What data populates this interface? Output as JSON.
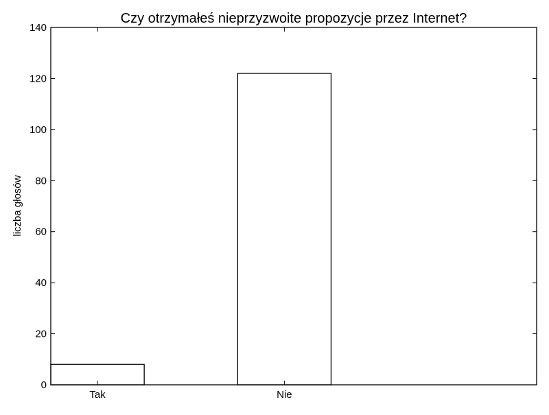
{
  "chart_data": {
    "type": "bar",
    "title": "Czy otrzymałeś nieprzyzwoite propozycje przez Internet?",
    "xlabel": "",
    "ylabel": "liczba głosów",
    "categories": [
      "Tak",
      "Nie"
    ],
    "values": [
      8,
      122
    ],
    "ylim": [
      0,
      140
    ],
    "yticks": [
      0,
      20,
      40,
      60,
      80,
      100,
      120,
      140
    ],
    "grid": false,
    "bar_fill": "#ffffff",
    "bar_edge": "#000000"
  }
}
